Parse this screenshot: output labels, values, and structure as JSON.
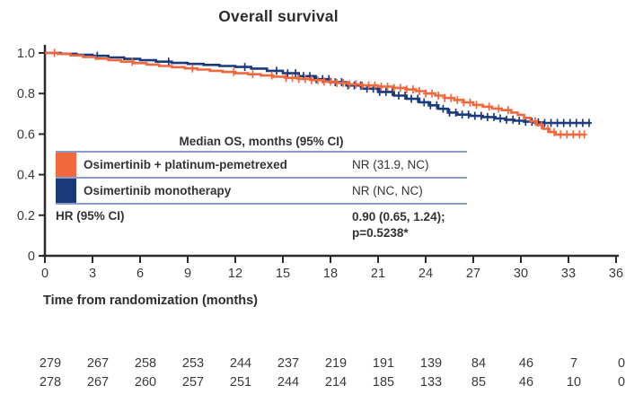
{
  "title": "Overall survival",
  "x_axis_label": "Time from randomization (months)",
  "colors": {
    "arm_combo": "#F2683C",
    "arm_mono": "#1A3A7C",
    "table_border": "#8C9CC8",
    "axis": "#2B2B2B",
    "tick_text": "#3A3A3A"
  },
  "inset_table": {
    "header": "Median OS, months (95% CI)",
    "rows": [
      {
        "label": "Osimertinib + platinum-pemetrexed",
        "value": "NR (31.9, NC)"
      },
      {
        "label": "Osimertinib monotherapy",
        "value": "NR (NC, NC)"
      }
    ],
    "hr_label": "HR (95% CI)",
    "hr_value_line1": "0.90 (0.65, 1.24);",
    "hr_value_line2": "p=0.5238*"
  },
  "chart_data": {
    "type": "line",
    "subtype": "kaplan-meier-step",
    "title": "Overall survival",
    "xlabel": "Time from randomization (months)",
    "ylabel": "",
    "xlim": [
      0,
      36
    ],
    "ylim": [
      0,
      1
    ],
    "grid": false,
    "x_ticks": [
      0,
      3,
      6,
      9,
      12,
      15,
      18,
      21,
      24,
      27,
      30,
      33,
      36
    ],
    "y_tick_labels": [
      "1.0",
      "0.8",
      "0.6",
      "0.4",
      "0.2",
      "0"
    ],
    "y_tick_values": [
      1.0,
      0.8,
      0.6,
      0.4,
      0.2,
      0
    ],
    "series": [
      {
        "name": "Osimertinib + platinum-pemetrexed",
        "color": "#F2683C",
        "points": [
          [
            0,
            1.0
          ],
          [
            0.8,
            0.995
          ],
          [
            1.6,
            0.988
          ],
          [
            2.4,
            0.98
          ],
          [
            3.2,
            0.972
          ],
          [
            4.0,
            0.964
          ],
          [
            4.8,
            0.957
          ],
          [
            5.6,
            0.95
          ],
          [
            6.4,
            0.943
          ],
          [
            7.2,
            0.936
          ],
          [
            8.0,
            0.93
          ],
          [
            8.8,
            0.924
          ],
          [
            9.6,
            0.918
          ],
          [
            10.4,
            0.912
          ],
          [
            11.2,
            0.906
          ],
          [
            12.0,
            0.9
          ],
          [
            12.8,
            0.895
          ],
          [
            13.6,
            0.889
          ],
          [
            14.4,
            0.883
          ],
          [
            15.2,
            0.877
          ],
          [
            16.0,
            0.872
          ],
          [
            16.8,
            0.866
          ],
          [
            17.6,
            0.859
          ],
          [
            18.4,
            0.852
          ],
          [
            19.2,
            0.845
          ],
          [
            20.0,
            0.84
          ],
          [
            21.0,
            0.834
          ],
          [
            22.0,
            0.828
          ],
          [
            22.8,
            0.82
          ],
          [
            23.4,
            0.812
          ],
          [
            24.0,
            0.8
          ],
          [
            24.6,
            0.79
          ],
          [
            25.2,
            0.778
          ],
          [
            25.8,
            0.768
          ],
          [
            26.4,
            0.756
          ],
          [
            27.0,
            0.744
          ],
          [
            27.6,
            0.735
          ],
          [
            28.2,
            0.726
          ],
          [
            28.8,
            0.718
          ],
          [
            29.4,
            0.706
          ],
          [
            29.8,
            0.695
          ],
          [
            30.2,
            0.68
          ],
          [
            30.6,
            0.663
          ],
          [
            31.0,
            0.645
          ],
          [
            31.4,
            0.626
          ],
          [
            31.8,
            0.61
          ],
          [
            32.2,
            0.598
          ],
          [
            34.0,
            0.598
          ]
        ],
        "censor_times": [
          0.6,
          5.5,
          9.3,
          11.9,
          13.1,
          14.3,
          15.2,
          15.6,
          16.0,
          16.4,
          16.8,
          17.2,
          17.6,
          18.0,
          18.4,
          18.8,
          19.2,
          19.6,
          20.0,
          20.4,
          20.8,
          21.2,
          21.6,
          22.0,
          22.4,
          22.8,
          23.2,
          23.6,
          24.0,
          24.4,
          24.8,
          25.2,
          25.6,
          26.0,
          26.4,
          26.8,
          27.2,
          28.0,
          28.6,
          29.2,
          30.9,
          31.3,
          31.7,
          32.1,
          32.5,
          32.9,
          33.3,
          33.7,
          34.0
        ]
      },
      {
        "name": "Osimertinib monotherapy",
        "color": "#1A3A7C",
        "points": [
          [
            0,
            1.0
          ],
          [
            1.0,
            0.996
          ],
          [
            2.0,
            0.991
          ],
          [
            3.0,
            0.986
          ],
          [
            4.0,
            0.978
          ],
          [
            5.0,
            0.971
          ],
          [
            6.0,
            0.964
          ],
          [
            7.0,
            0.957
          ],
          [
            8.0,
            0.951
          ],
          [
            9.0,
            0.946
          ],
          [
            10.0,
            0.941
          ],
          [
            11.0,
            0.936
          ],
          [
            12.0,
            0.931
          ],
          [
            13.0,
            0.923
          ],
          [
            14.0,
            0.912
          ],
          [
            15.0,
            0.9
          ],
          [
            16.0,
            0.886
          ],
          [
            17.0,
            0.871
          ],
          [
            18.0,
            0.856
          ],
          [
            19.0,
            0.84
          ],
          [
            20.0,
            0.824
          ],
          [
            21.0,
            0.808
          ],
          [
            22.0,
            0.79
          ],
          [
            22.8,
            0.774
          ],
          [
            23.6,
            0.757
          ],
          [
            24.2,
            0.742
          ],
          [
            24.8,
            0.725
          ],
          [
            25.4,
            0.706
          ],
          [
            26.0,
            0.696
          ],
          [
            26.8,
            0.69
          ],
          [
            27.6,
            0.684
          ],
          [
            28.4,
            0.677
          ],
          [
            29.0,
            0.671
          ],
          [
            29.6,
            0.666
          ],
          [
            30.2,
            0.661
          ],
          [
            30.8,
            0.658
          ],
          [
            31.4,
            0.655
          ],
          [
            34.4,
            0.655
          ]
        ],
        "censor_times": [
          3.3,
          7.8,
          12.6,
          14.6,
          15.3,
          15.8,
          16.3,
          16.7,
          17.1,
          17.5,
          17.9,
          18.3,
          18.7,
          19.1,
          19.5,
          19.9,
          20.3,
          20.7,
          21.1,
          21.5,
          21.9,
          22.3,
          22.7,
          23.1,
          23.5,
          23.9,
          24.3,
          24.7,
          25.1,
          25.5,
          25.9,
          26.3,
          26.7,
          27.1,
          27.5,
          27.9,
          28.3,
          28.7,
          29.1,
          29.5,
          29.9,
          30.3,
          30.7,
          31.1,
          31.5,
          31.9,
          32.3,
          32.7,
          33.1,
          33.5,
          33.9,
          34.3
        ]
      }
    ],
    "number_at_risk": {
      "times": [
        0,
        3,
        6,
        9,
        12,
        15,
        18,
        21,
        24,
        27,
        30,
        33,
        36
      ],
      "rows": [
        {
          "name": "Osimertinib + platinum-pemetrexed",
          "counts": [
            "279",
            "267",
            "258",
            "253",
            "244",
            "237",
            "219",
            "191",
            "139",
            "84",
            "46",
            "7",
            "0"
          ]
        },
        {
          "name": "Osimertinib monotherapy",
          "counts": [
            "278",
            "267",
            "260",
            "257",
            "251",
            "244",
            "214",
            "185",
            "133",
            "85",
            "46",
            "10",
            "0"
          ]
        }
      ]
    }
  }
}
